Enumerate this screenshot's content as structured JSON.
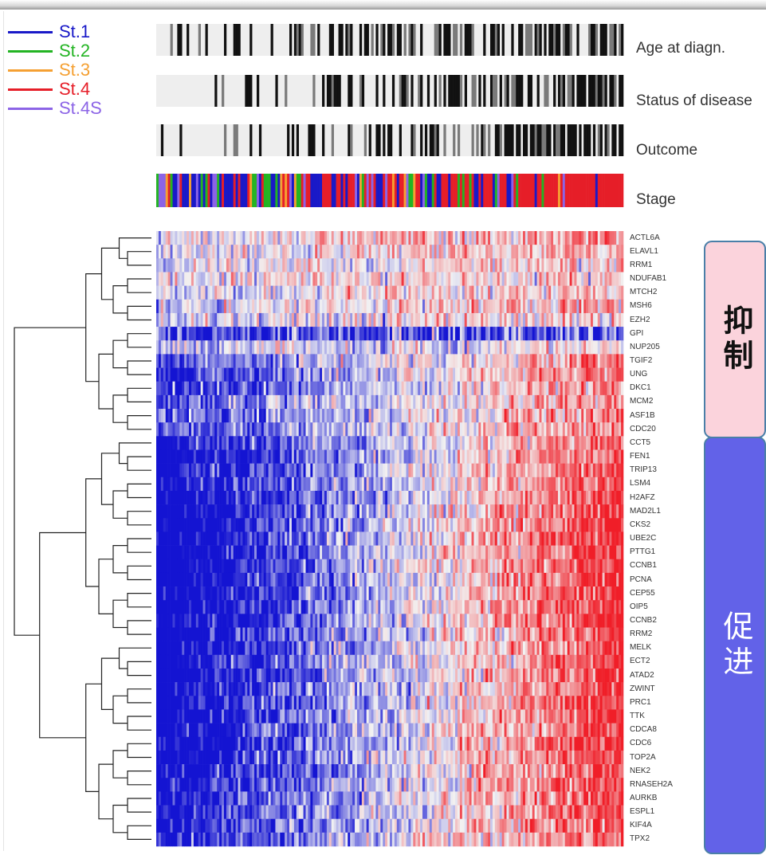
{
  "chart_data": {
    "type": "heatmap",
    "title": "",
    "legend": [
      {
        "label": "St.1",
        "color": "#1919c8"
      },
      {
        "label": "St.2",
        "color": "#23b423"
      },
      {
        "label": "St.3",
        "color": "#f5a032"
      },
      {
        "label": "St.4",
        "color": "#e61e28"
      },
      {
        "label": "St.4S",
        "color": "#8c64e6"
      }
    ],
    "annotation_tracks": [
      "Age at diagn.",
      "Status of disease",
      "Outcome",
      "Stage"
    ],
    "genes": [
      "ACTL6A",
      "ELAVL1",
      "RRM1",
      "NDUFAB1",
      "MTCH2",
      "MSH6",
      "EZH2",
      "GPI",
      "NUP205",
      "TGIF2",
      "UNG",
      "DKC1",
      "MCM2",
      "ASF1B",
      "CDC20",
      "CCT5",
      "FEN1",
      "TRIP13",
      "LSM4",
      "H2AFZ",
      "MAD2L1",
      "CKS2",
      "UBE2C",
      "PTTG1",
      "CCNB1",
      "PCNA",
      "CEP55",
      "OIP5",
      "CCNB2",
      "RRM2",
      "MELK",
      "ECT2",
      "ATAD2",
      "ZWINT",
      "PRC1",
      "TTK",
      "CDCA8",
      "CDC6",
      "TOP2A",
      "NEK2",
      "RNASEH2A",
      "AURKB",
      "ESPL1",
      "KIF4A",
      "TPX2"
    ],
    "gene_trend": [
      0.25,
      0.22,
      0.2,
      0.1,
      0.15,
      0.28,
      0.15,
      -0.35,
      0.1,
      0.55,
      0.65,
      0.6,
      0.55,
      0.6,
      0.55,
      0.8,
      0.9,
      0.85,
      0.85,
      0.95,
      1.0,
      1.0,
      1.0,
      1.0,
      1.0,
      1.0,
      1.0,
      1.0,
      1.0,
      0.95,
      0.95,
      0.95,
      0.95,
      0.9,
      0.95,
      0.95,
      0.95,
      0.95,
      0.95,
      0.9,
      0.85,
      0.85,
      0.8,
      0.8,
      0.8
    ],
    "gene_base": [
      0.2,
      0.15,
      0.1,
      0.1,
      0.05,
      0.1,
      0.0,
      -0.6,
      -0.1,
      -0.1,
      -0.15,
      -0.2,
      -0.1,
      -0.1,
      -0.1,
      -0.2,
      -0.25,
      -0.2,
      -0.2,
      -0.25,
      -0.2,
      -0.2,
      -0.2,
      -0.2,
      -0.2,
      -0.2,
      -0.2,
      -0.2,
      -0.2,
      -0.2,
      -0.2,
      -0.2,
      -0.2,
      -0.2,
      -0.2,
      -0.2,
      -0.2,
      -0.2,
      -0.2,
      -0.2,
      -0.15,
      -0.15,
      -0.15,
      -0.15,
      -0.15
    ],
    "n_samples": 200,
    "color_scale": {
      "low": "#1414d2",
      "mid": "#f2f2f2",
      "high": "#f01e28"
    },
    "side_groups": [
      {
        "label": "抑制",
        "genes": [
          "ACTL6A",
          "ELAVL1",
          "RRM1",
          "NDUFAB1",
          "MTCH2",
          "MSH6",
          "EZH2",
          "GPI",
          "NUP205",
          "TGIF2",
          "UNG",
          "DKC1",
          "MCM2",
          "ASF1B",
          "CDC20"
        ],
        "fill": "#fbd3dc",
        "text_color": "#111111"
      },
      {
        "label": "促进",
        "genes": [
          "CCT5",
          "FEN1",
          "TRIP13",
          "LSM4",
          "H2AFZ",
          "MAD2L1",
          "CKS2",
          "UBE2C",
          "PTTG1",
          "CCNB1",
          "PCNA",
          "CEP55",
          "OIP5",
          "CCNB2",
          "RRM2",
          "MELK",
          "ECT2",
          "ATAD2",
          "ZWINT",
          "PRC1",
          "TTK",
          "CDCA8",
          "CDC6",
          "TOP2A",
          "NEK2",
          "RNASEH2A",
          "AURKB",
          "ESPL1",
          "KIF4A",
          "TPX2"
        ],
        "fill": "#6262e8",
        "text_color": "#ffffff"
      }
    ]
  }
}
